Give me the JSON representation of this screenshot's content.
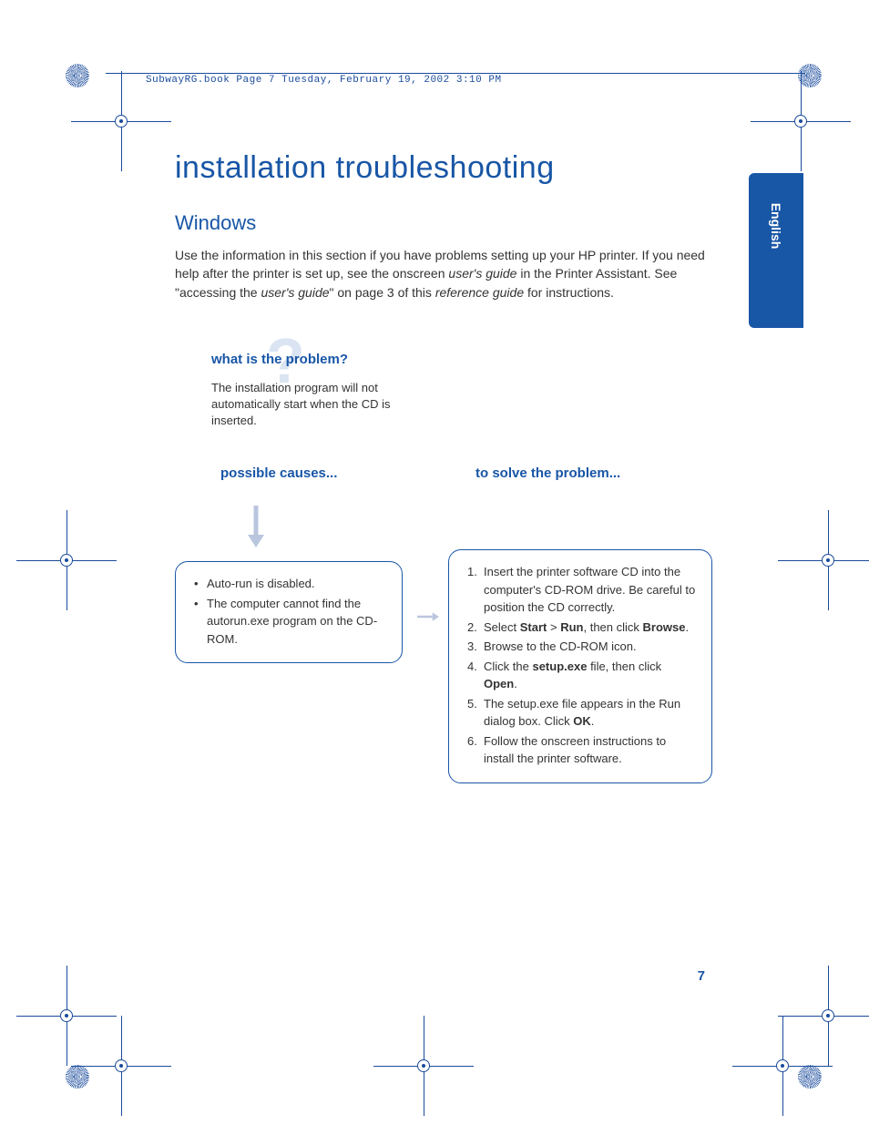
{
  "header": "SubwayRG.book  Page 7  Tuesday, February 19, 2002  3:10 PM",
  "title": "installation troubleshooting",
  "subtitle": "Windows",
  "intro_parts": [
    {
      "t": "Use the information in this section if you have problems setting up your HP printer. If you need help after the printer is set up, see the onscreen "
    },
    {
      "t": "user's guide",
      "i": true
    },
    {
      "t": " in the Printer Assistant. See \"accessing the "
    },
    {
      "t": "user's guide",
      "i": true
    },
    {
      "t": "\" on page 3 of this "
    },
    {
      "t": "reference guide",
      "i": true
    },
    {
      "t": " for instructions."
    }
  ],
  "lang_tab": "English",
  "problem": {
    "title": "what is the problem?",
    "text": "The installation program will not automatically start when the CD is inserted."
  },
  "causes_title": "possible causes...",
  "solve_title": "to solve the problem...",
  "causes": [
    "Auto-run is disabled.",
    "The computer cannot find the autorun.exe program on the CD-ROM."
  ],
  "steps": [
    [
      {
        "t": "Insert the printer software CD into the computer's CD-ROM drive. Be careful to position the CD correctly."
      }
    ],
    [
      {
        "t": "Select "
      },
      {
        "t": "Start",
        "b": true
      },
      {
        "t": " > "
      },
      {
        "t": "Run",
        "b": true
      },
      {
        "t": ", then click "
      },
      {
        "t": "Browse",
        "b": true
      },
      {
        "t": "."
      }
    ],
    [
      {
        "t": "Browse to the CD-ROM icon."
      }
    ],
    [
      {
        "t": "Click the "
      },
      {
        "t": "setup.exe",
        "b": true
      },
      {
        "t": " file, then click "
      },
      {
        "t": "Open",
        "b": true
      },
      {
        "t": "."
      }
    ],
    [
      {
        "t": "The setup.exe file appears in the Run dialog box. Click "
      },
      {
        "t": "OK",
        "b": true
      },
      {
        "t": "."
      }
    ],
    [
      {
        "t": "Follow the onscreen instructions to install the printer software."
      }
    ]
  ],
  "page_number": "7",
  "colors": {
    "brand": "#1856a6",
    "crop": "#1a4b9c",
    "faint": "#dbe4f2",
    "arrow": "#b9c6dd"
  }
}
